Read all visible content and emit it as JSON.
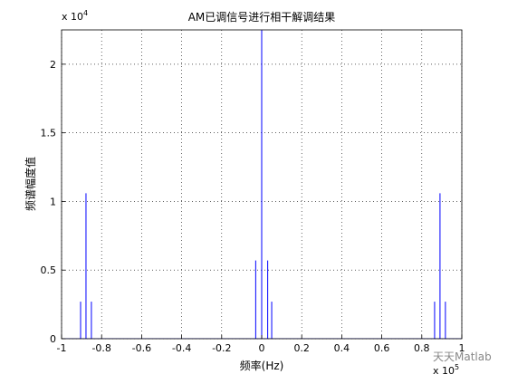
{
  "chart_data": {
    "type": "stem",
    "title": "AM已调信号进行相干解调结果",
    "xlabel": "频率(Hz)",
    "ylabel": "频谱幅度值",
    "x_multiplier": {
      "base": "x 10",
      "exponent": "5"
    },
    "y_multiplier": {
      "base": "x 10",
      "exponent": "4"
    },
    "x": [
      -0.905,
      -0.878,
      -0.851,
      -0.03,
      0,
      0.03,
      0.05,
      0.864,
      0.891,
      0.918
    ],
    "values": [
      0.27,
      1.06,
      0.27,
      0.57,
      2.3,
      0.57,
      0.27,
      0.27,
      1.06,
      0.27
    ],
    "color": "#0000ff",
    "xlim": [
      -1,
      1
    ],
    "ylim": [
      0,
      2.25
    ],
    "xticks": [
      -1,
      -0.8,
      -0.6,
      -0.4,
      -0.2,
      0,
      0.2,
      0.4,
      0.6,
      0.8,
      1
    ],
    "yticks": [
      0,
      0.5,
      1,
      1.5,
      2
    ],
    "grid": true,
    "watermark": "天天Matlab"
  }
}
